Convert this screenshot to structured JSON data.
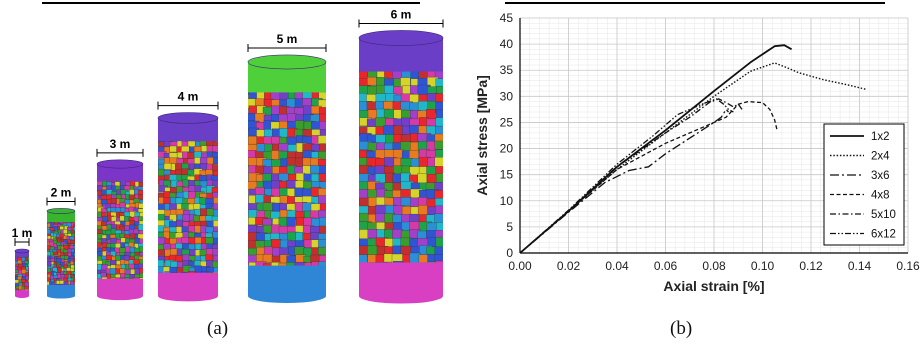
{
  "figure": {
    "panel_a_label": "(a)",
    "panel_b_label": "(b)"
  },
  "specimens": [
    {
      "label": "1 m",
      "diameter_m": 1,
      "height_ratio": 2
    },
    {
      "label": "2 m",
      "diameter_m": 2,
      "height_ratio": 2
    },
    {
      "label": "3 m",
      "diameter_m": 3,
      "height_ratio": 2
    },
    {
      "label": "4 m",
      "diameter_m": 4,
      "height_ratio": 2
    },
    {
      "label": "5 m",
      "diameter_m": 5,
      "height_ratio": 2
    },
    {
      "label": "6 m",
      "diameter_m": 6,
      "height_ratio": 2
    }
  ],
  "colors": {
    "top_caps": [
      "#6b3fc8",
      "#38b52e",
      "#7b35c9",
      "#6a3ec7",
      "#4fcf3a",
      "#6a3ec7"
    ],
    "bottom_caps": [
      "#d639c8",
      "#2f86d6",
      "#d83fc3",
      "#d83fc3",
      "#2f86d6",
      "#d83fc3"
    ],
    "grains": [
      "#1fa34a",
      "#e8262b",
      "#2f55d4",
      "#d6d32a",
      "#a33fc9",
      "#1fb7c9",
      "#e87a1f",
      "#d63aa6",
      "#3a9e2f",
      "#6f41c8",
      "#c22f2f",
      "#2b8fd6"
    ]
  },
  "chart_data": {
    "type": "line",
    "title": "",
    "xlabel": "Axial strain [%]",
    "ylabel": "Axial stress [MPa]",
    "xlim": [
      0,
      0.16
    ],
    "ylim": [
      0,
      45
    ],
    "xticks": [
      "0.00",
      "0.02",
      "0.04",
      "0.06",
      "0.08",
      "0.10",
      "0.12",
      "0.14",
      "0.16"
    ],
    "yticks": [
      "0",
      "5",
      "10",
      "15",
      "20",
      "25",
      "30",
      "35",
      "40",
      "45"
    ],
    "grid": true,
    "legend_position": "right",
    "series": [
      {
        "name": "1x2",
        "dash": "solid",
        "points": [
          [
            0,
            0
          ],
          [
            0.02,
            8
          ],
          [
            0.04,
            16.5
          ],
          [
            0.06,
            23.5
          ],
          [
            0.08,
            31
          ],
          [
            0.095,
            36.5
          ],
          [
            0.105,
            39.6
          ],
          [
            0.109,
            39.8
          ],
          [
            0.112,
            39
          ]
        ]
      },
      {
        "name": "2x4",
        "dash": "dotted",
        "points": [
          [
            0,
            0
          ],
          [
            0.02,
            8
          ],
          [
            0.04,
            16
          ],
          [
            0.06,
            23
          ],
          [
            0.08,
            30
          ],
          [
            0.095,
            34.8
          ],
          [
            0.105,
            36.4
          ],
          [
            0.11,
            35.5
          ],
          [
            0.115,
            34.5
          ],
          [
            0.125,
            33.2
          ],
          [
            0.135,
            32.2
          ],
          [
            0.143,
            31.3
          ]
        ]
      },
      {
        "name": "3x6",
        "dash": "longdash-dot",
        "points": [
          [
            0,
            0
          ],
          [
            0.02,
            7.8
          ],
          [
            0.035,
            13.5
          ],
          [
            0.045,
            15.8
          ],
          [
            0.053,
            16.5
          ],
          [
            0.06,
            19
          ],
          [
            0.07,
            22
          ],
          [
            0.08,
            25
          ],
          [
            0.083,
            26
          ],
          [
            0.085,
            27.5
          ],
          [
            0.086,
            27
          ]
        ]
      },
      {
        "name": "4x8",
        "dash": "dashed",
        "points": [
          [
            0,
            0
          ],
          [
            0.02,
            8
          ],
          [
            0.04,
            16
          ],
          [
            0.06,
            21
          ],
          [
            0.075,
            24
          ],
          [
            0.085,
            26
          ],
          [
            0.09,
            28.5
          ],
          [
            0.094,
            29
          ],
          [
            0.1,
            28.8
          ],
          [
            0.103,
            27.5
          ],
          [
            0.105,
            25.5
          ],
          [
            0.106,
            23.5
          ]
        ]
      },
      {
        "name": "5x10",
        "dash": "dash-dot",
        "points": [
          [
            0,
            0
          ],
          [
            0.02,
            8
          ],
          [
            0.04,
            16.5
          ],
          [
            0.06,
            23
          ],
          [
            0.07,
            26
          ],
          [
            0.078,
            28.8
          ],
          [
            0.082,
            29.5
          ],
          [
            0.085,
            28.8
          ],
          [
            0.088,
            28
          ],
          [
            0.09,
            28.5
          ],
          [
            0.092,
            27.2
          ]
        ]
      },
      {
        "name": "6x12",
        "dash": "dash-dot-dot",
        "points": [
          [
            0,
            0
          ],
          [
            0.02,
            8.2
          ],
          [
            0.04,
            17
          ],
          [
            0.055,
            22.5
          ],
          [
            0.065,
            26.5
          ],
          [
            0.075,
            28.5
          ],
          [
            0.081,
            29.5
          ],
          [
            0.084,
            28.5
          ],
          [
            0.086,
            27.5
          ],
          [
            0.088,
            27
          ]
        ]
      }
    ]
  }
}
